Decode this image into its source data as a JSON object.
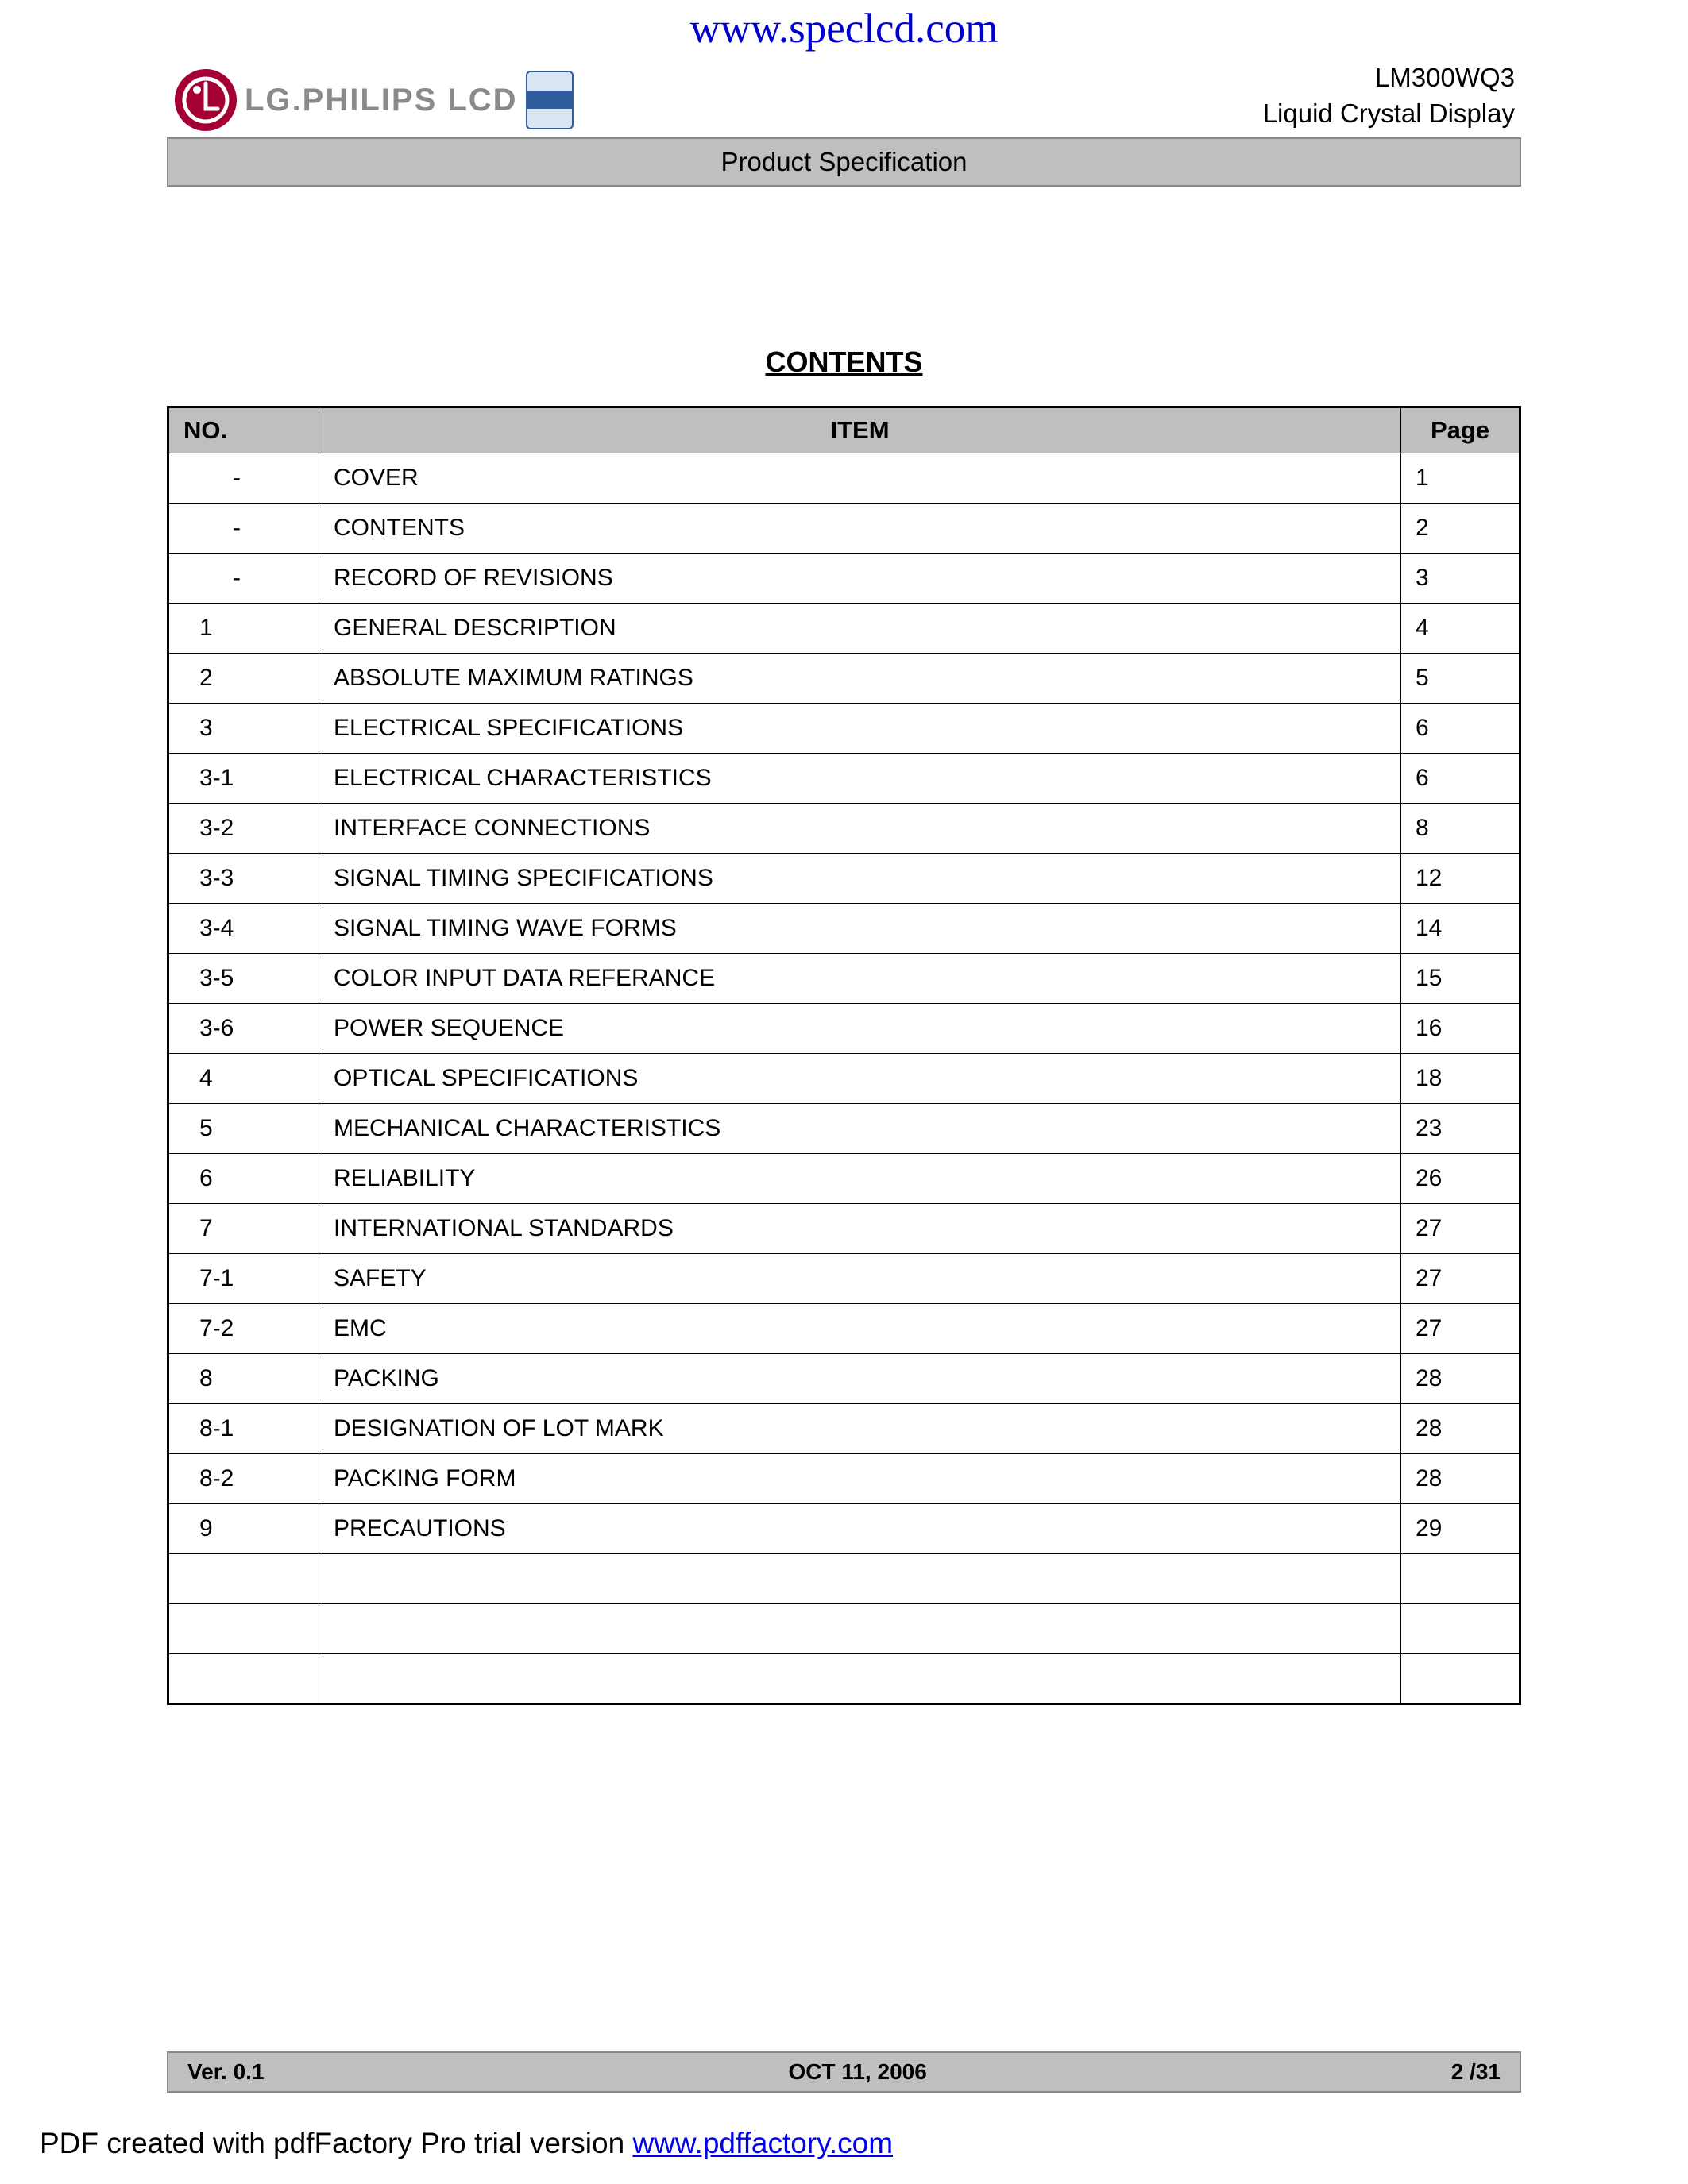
{
  "watermark_url": "www.speclcd.com",
  "header": {
    "logo_text": "LG.PHILIPS LCD",
    "model": "LM300WQ3",
    "product_type": "Liquid Crystal Display",
    "spec_bar": "Product Specification"
  },
  "contents_title": "CONTENTS",
  "table": {
    "columns": {
      "no": "NO.",
      "item": "ITEM",
      "page": "Page"
    },
    "header_bg": "#bfbfbf",
    "border_color": "#000000",
    "font_size": 30,
    "rows": [
      {
        "no": "-",
        "item": "COVER",
        "page": "1"
      },
      {
        "no": "-",
        "item": "CONTENTS",
        "page": "2"
      },
      {
        "no": "-",
        "item": "RECORD OF REVISIONS",
        "page": "3"
      },
      {
        "no": "1",
        "item": "GENERAL DESCRIPTION",
        "page": "4"
      },
      {
        "no": "2",
        "item": "ABSOLUTE MAXIMUM RATINGS",
        "page": "5"
      },
      {
        "no": "3",
        "item": "ELECTRICAL SPECIFICATIONS",
        "page": "6"
      },
      {
        "no": "3-1",
        "item": "ELECTRICAL CHARACTERISTICS",
        "page": "6"
      },
      {
        "no": "3-2",
        "item": "INTERFACE CONNECTIONS",
        "page": "8"
      },
      {
        "no": "3-3",
        "item": "SIGNAL TIMING SPECIFICATIONS",
        "page": "12"
      },
      {
        "no": "3-4",
        "item": "SIGNAL TIMING WAVE FORMS",
        "page": "14"
      },
      {
        "no": "3-5",
        "item": "COLOR INPUT DATA REFERANCE",
        "page": "15"
      },
      {
        "no": "3-6",
        "item": "POWER SEQUENCE",
        "page": "16"
      },
      {
        "no": "4",
        "item": "OPTICAL SPECIFICATIONS",
        "page": "18"
      },
      {
        "no": "5",
        "item": "MECHANICAL CHARACTERISTICS",
        "page": "23"
      },
      {
        "no": "6",
        "item": "RELIABILITY",
        "page": "26"
      },
      {
        "no": "7",
        "item": "INTERNATIONAL STANDARDS",
        "page": "27"
      },
      {
        "no": "7-1",
        "item": "SAFETY",
        "page": "27"
      },
      {
        "no": "7-2",
        "item": "EMC",
        "page": "27"
      },
      {
        "no": "8",
        "item": "PACKING",
        "page": "28"
      },
      {
        "no": "8-1",
        "item": "DESIGNATION OF LOT MARK",
        "page": "28"
      },
      {
        "no": "8-2",
        "item": "PACKING FORM",
        "page": "28"
      },
      {
        "no": "9",
        "item": "PRECAUTIONS",
        "page": "29"
      },
      {
        "no": "",
        "item": "",
        "page": ""
      },
      {
        "no": "",
        "item": "",
        "page": ""
      },
      {
        "no": "",
        "item": "",
        "page": ""
      }
    ]
  },
  "footer": {
    "version": "Ver. 0.1",
    "date": "OCT 11, 2006",
    "page_indicator": "2 /31"
  },
  "pdf_footer": {
    "prefix": "PDF created with pdfFactory Pro trial version ",
    "link_text": "www.pdffactory.com"
  },
  "colors": {
    "link_blue": "#0000cd",
    "bar_gray": "#bfbfbf",
    "lg_red": "#a50034",
    "logo_gray": "#8a8a8a"
  }
}
